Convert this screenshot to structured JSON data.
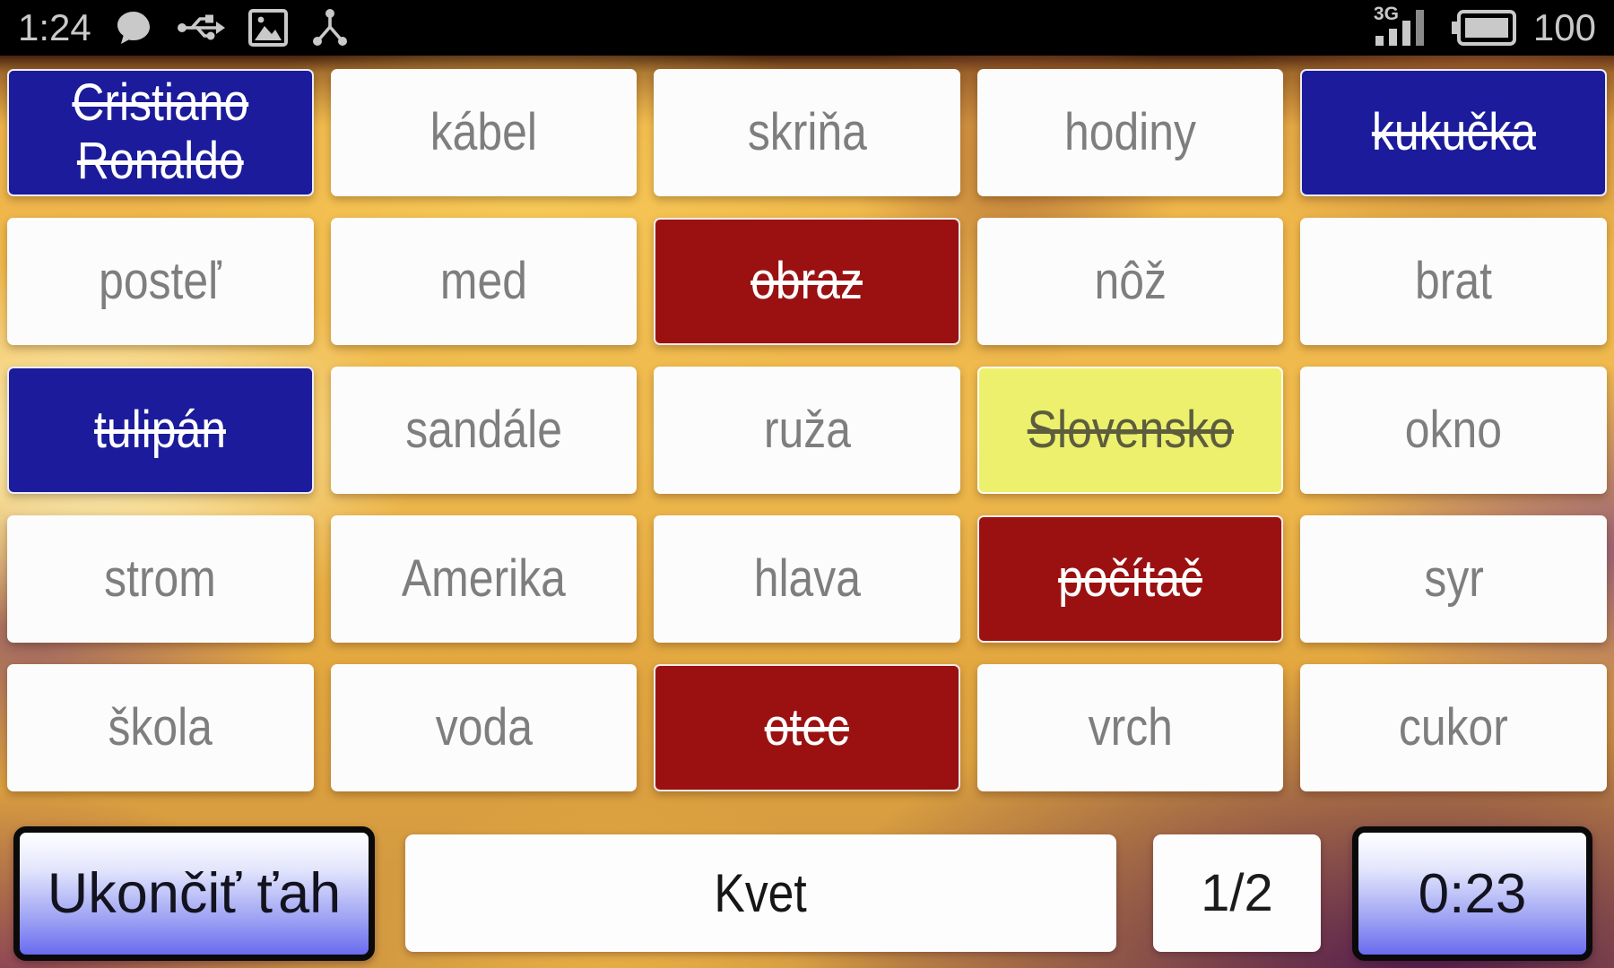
{
  "status_bar": {
    "time": "1:24",
    "left_icons": [
      "chat-bubble-icon",
      "usb-icon",
      "screenshot-icon",
      "share-hub-icon"
    ],
    "network_label": "3G",
    "battery_level": "100"
  },
  "board": {
    "columns": 5,
    "rows": 5,
    "cards": [
      {
        "label": "Cristiano Ronaldo",
        "color": "blue",
        "struck": true
      },
      {
        "label": "kábel",
        "color": "white",
        "struck": false
      },
      {
        "label": "skriňa",
        "color": "white",
        "struck": false
      },
      {
        "label": "hodiny",
        "color": "white",
        "struck": false
      },
      {
        "label": "kukučka",
        "color": "blue",
        "struck": true
      },
      {
        "label": "posteľ",
        "color": "white",
        "struck": false
      },
      {
        "label": "med",
        "color": "white",
        "struck": false
      },
      {
        "label": "obraz",
        "color": "red",
        "struck": true
      },
      {
        "label": "nôž",
        "color": "white",
        "struck": false
      },
      {
        "label": "brat",
        "color": "white",
        "struck": false
      },
      {
        "label": "tulipán",
        "color": "blue",
        "struck": true
      },
      {
        "label": "sandále",
        "color": "white",
        "struck": false
      },
      {
        "label": "ruža",
        "color": "white",
        "struck": false
      },
      {
        "label": "Slovensko",
        "color": "yellow",
        "struck": true
      },
      {
        "label": "okno",
        "color": "white",
        "struck": false
      },
      {
        "label": "strom",
        "color": "white",
        "struck": false
      },
      {
        "label": "Amerika",
        "color": "white",
        "struck": false
      },
      {
        "label": "hlava",
        "color": "white",
        "struck": false
      },
      {
        "label": "počítač",
        "color": "red",
        "struck": true
      },
      {
        "label": "syr",
        "color": "white",
        "struck": false
      },
      {
        "label": "škola",
        "color": "white",
        "struck": false
      },
      {
        "label": "voda",
        "color": "white",
        "struck": false
      },
      {
        "label": "otec",
        "color": "red",
        "struck": true
      },
      {
        "label": "vrch",
        "color": "white",
        "struck": false
      },
      {
        "label": "cukor",
        "color": "white",
        "struck": false
      }
    ]
  },
  "bottom_bar": {
    "end_turn_label": "Ukončiť ťah",
    "clue_word": "Kvet",
    "clue_counter": "1/2",
    "timer": "0:23"
  },
  "theme": {
    "card_blue": "#1b1b9b",
    "card_red": "#9b1111",
    "card_yellow": "#edf06c",
    "card_white": "#fcfcfc",
    "card_text_gray": "#7e7e7e",
    "card_text_yellow": "#5d5d3e",
    "button_gradient_top": "#ffffff",
    "button_gradient_bottom": "#6a6bef",
    "background_gold": "#f0bb4e",
    "background_purple": "#51194f",
    "statusbar_foreground": "#c9c9c9"
  }
}
